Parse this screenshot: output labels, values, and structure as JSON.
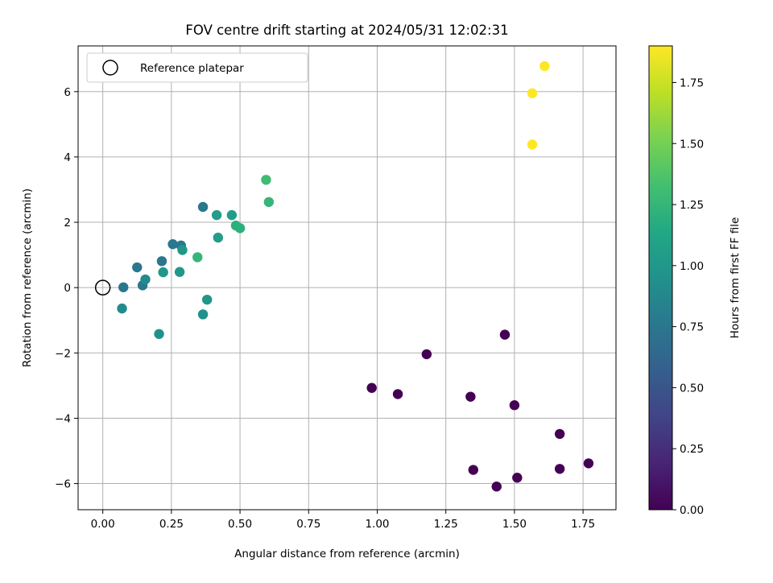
{
  "chart_data": {
    "type": "scatter",
    "title": "FOV centre drift starting at 2024/05/31 12:02:31",
    "xlabel": "Angular distance from reference (arcmin)",
    "ylabel": "Rotation from reference (arcmin)",
    "xlim": [
      -0.09,
      1.87
    ],
    "ylim": [
      -6.8,
      7.4
    ],
    "xticks": [
      0.0,
      0.25,
      0.5,
      0.75,
      1.0,
      1.25,
      1.5,
      1.75
    ],
    "xtick_labels": [
      "0.00",
      "0.25",
      "0.50",
      "0.75",
      "1.00",
      "1.25",
      "1.50",
      "1.75"
    ],
    "yticks": [
      -6,
      -4,
      -2,
      0,
      2,
      4,
      6
    ],
    "ytick_labels": [
      "−6",
      "−4",
      "−2",
      "0",
      "2",
      "4",
      "6"
    ],
    "grid": true,
    "legend": {
      "placement": "top-left",
      "entries": [
        "Reference platepar"
      ]
    },
    "reference": {
      "x": 0.0,
      "y": 0.0
    },
    "colorbar": {
      "label": "Hours from first FF file",
      "range": [
        0.0,
        1.9
      ],
      "ticks": [
        0.0,
        0.25,
        0.5,
        0.75,
        1.0,
        1.25,
        1.5,
        1.75
      ],
      "tick_labels": [
        "0.00",
        "0.25",
        "0.50",
        "0.75",
        "1.00",
        "1.25",
        "1.50",
        "1.75"
      ],
      "colormap": "viridis"
    },
    "points": [
      {
        "x": 0.98,
        "y": -3.07,
        "c": 0.0
      },
      {
        "x": 1.075,
        "y": -3.26,
        "c": 0.0
      },
      {
        "x": 1.18,
        "y": -2.04,
        "c": 0.0
      },
      {
        "x": 1.34,
        "y": -3.34,
        "c": 0.0
      },
      {
        "x": 1.35,
        "y": -5.58,
        "c": 0.0
      },
      {
        "x": 1.435,
        "y": -6.09,
        "c": 0.0
      },
      {
        "x": 1.465,
        "y": -1.44,
        "c": 0.0
      },
      {
        "x": 1.5,
        "y": -3.6,
        "c": 0.0
      },
      {
        "x": 1.51,
        "y": -5.82,
        "c": 0.0
      },
      {
        "x": 1.665,
        "y": -4.48,
        "c": 0.0
      },
      {
        "x": 1.665,
        "y": -5.55,
        "c": 0.0
      },
      {
        "x": 1.77,
        "y": -5.38,
        "c": 0.0
      },
      {
        "x": 0.075,
        "y": 0.01,
        "c": 0.75
      },
      {
        "x": 0.145,
        "y": 0.07,
        "c": 0.75
      },
      {
        "x": 0.125,
        "y": 0.62,
        "c": 0.75
      },
      {
        "x": 0.215,
        "y": 0.81,
        "c": 0.75
      },
      {
        "x": 0.255,
        "y": 1.33,
        "c": 0.75
      },
      {
        "x": 0.285,
        "y": 1.29,
        "c": 0.75
      },
      {
        "x": 0.365,
        "y": 2.47,
        "c": 0.75
      },
      {
        "x": 0.07,
        "y": -0.64,
        "c": 0.9
      },
      {
        "x": 0.155,
        "y": 0.25,
        "c": 0.9
      },
      {
        "x": 0.205,
        "y": -1.42,
        "c": 0.95
      },
      {
        "x": 0.22,
        "y": 0.47,
        "c": 1.0
      },
      {
        "x": 0.28,
        "y": 0.48,
        "c": 1.0
      },
      {
        "x": 0.29,
        "y": 1.15,
        "c": 1.0
      },
      {
        "x": 0.365,
        "y": -0.82,
        "c": 0.95
      },
      {
        "x": 0.38,
        "y": -0.37,
        "c": 1.0
      },
      {
        "x": 0.415,
        "y": 2.22,
        "c": 1.05
      },
      {
        "x": 0.42,
        "y": 1.53,
        "c": 1.05
      },
      {
        "x": 0.47,
        "y": 2.22,
        "c": 1.05
      },
      {
        "x": 0.485,
        "y": 1.9,
        "c": 1.2
      },
      {
        "x": 0.5,
        "y": 1.82,
        "c": 1.2
      },
      {
        "x": 0.345,
        "y": 0.93,
        "c": 1.25
      },
      {
        "x": 0.595,
        "y": 3.3,
        "c": 1.3
      },
      {
        "x": 0.605,
        "y": 2.62,
        "c": 1.25
      },
      {
        "x": 1.565,
        "y": 4.38,
        "c": 1.9
      },
      {
        "x": 1.565,
        "y": 5.95,
        "c": 1.9
      },
      {
        "x": 1.61,
        "y": 6.78,
        "c": 1.9
      }
    ]
  }
}
